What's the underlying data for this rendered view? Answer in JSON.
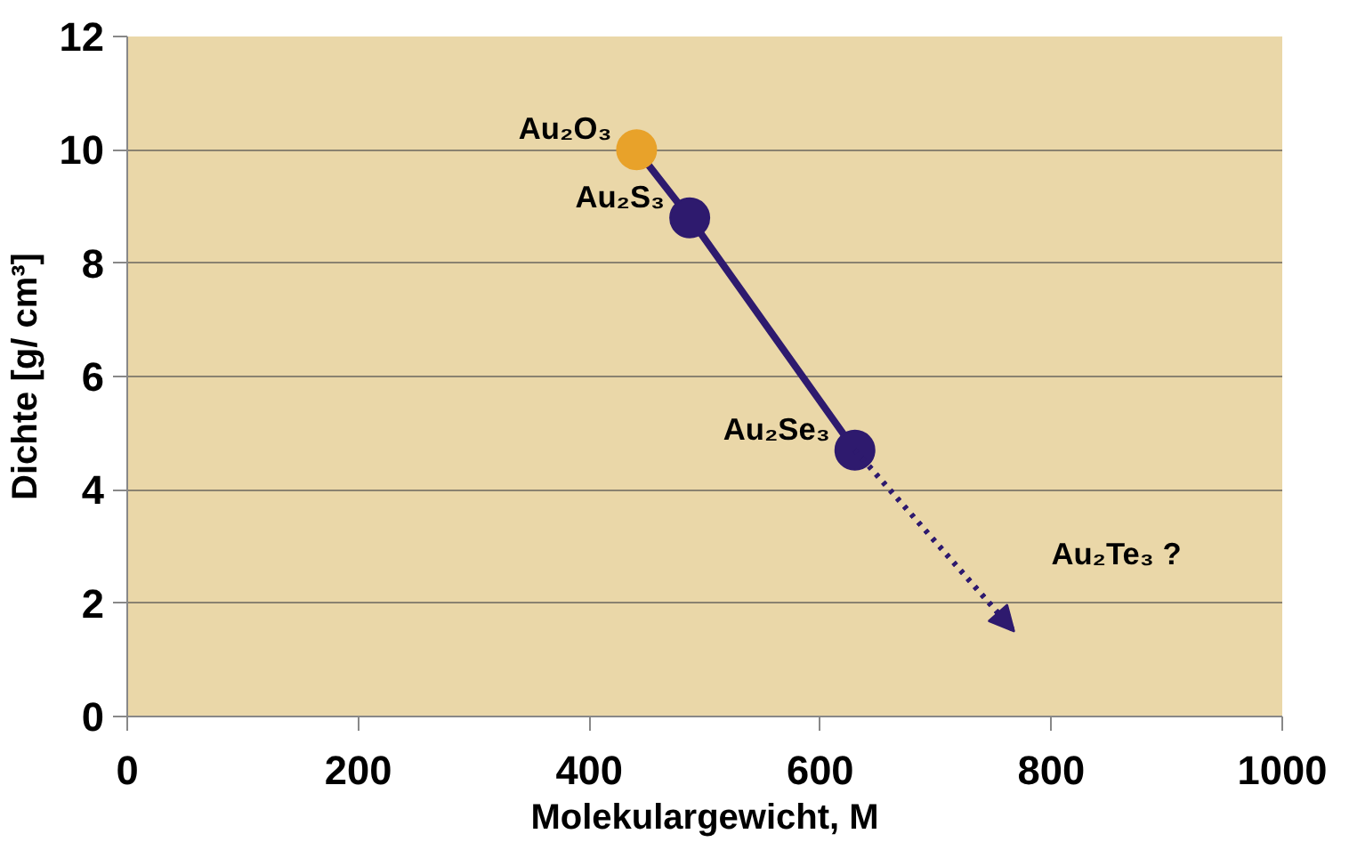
{
  "chart_data": {
    "type": "line",
    "xlabel": "Molekulargewicht, M",
    "ylabel": "Dichte [g/ cm³]",
    "xlim": [
      0,
      1000
    ],
    "xticks": [
      0,
      200,
      400,
      600,
      800,
      1000
    ],
    "ylim": [
      0,
      12
    ],
    "yticks": [
      0,
      2,
      4,
      6,
      8,
      10,
      12
    ],
    "grid": "y",
    "series": [
      {
        "x": [
          441,
          487,
          630
        ],
        "values": [
          10.0,
          8.8,
          4.7
        ],
        "color": "#2e1a6e",
        "colors": [
          "#e8a22a",
          "#2e1a6e",
          "#2e1a6e"
        ],
        "marker": "circle",
        "line_style": "solid"
      },
      {
        "x": [
          630,
          768
        ],
        "values": [
          4.7,
          1.5
        ],
        "color": "#2e1a6e",
        "marker": "none",
        "line_style": "dotted"
      }
    ],
    "annotations": [
      {
        "text": "Au₂O₃",
        "x": 441,
        "y": 10.0
      },
      {
        "text": "Au₂S₃",
        "x": 487,
        "y": 8.8
      },
      {
        "text": "Au₂Se₃",
        "x": 630,
        "y": 4.7
      },
      "Au₂Te₃ ?"
    ]
  }
}
